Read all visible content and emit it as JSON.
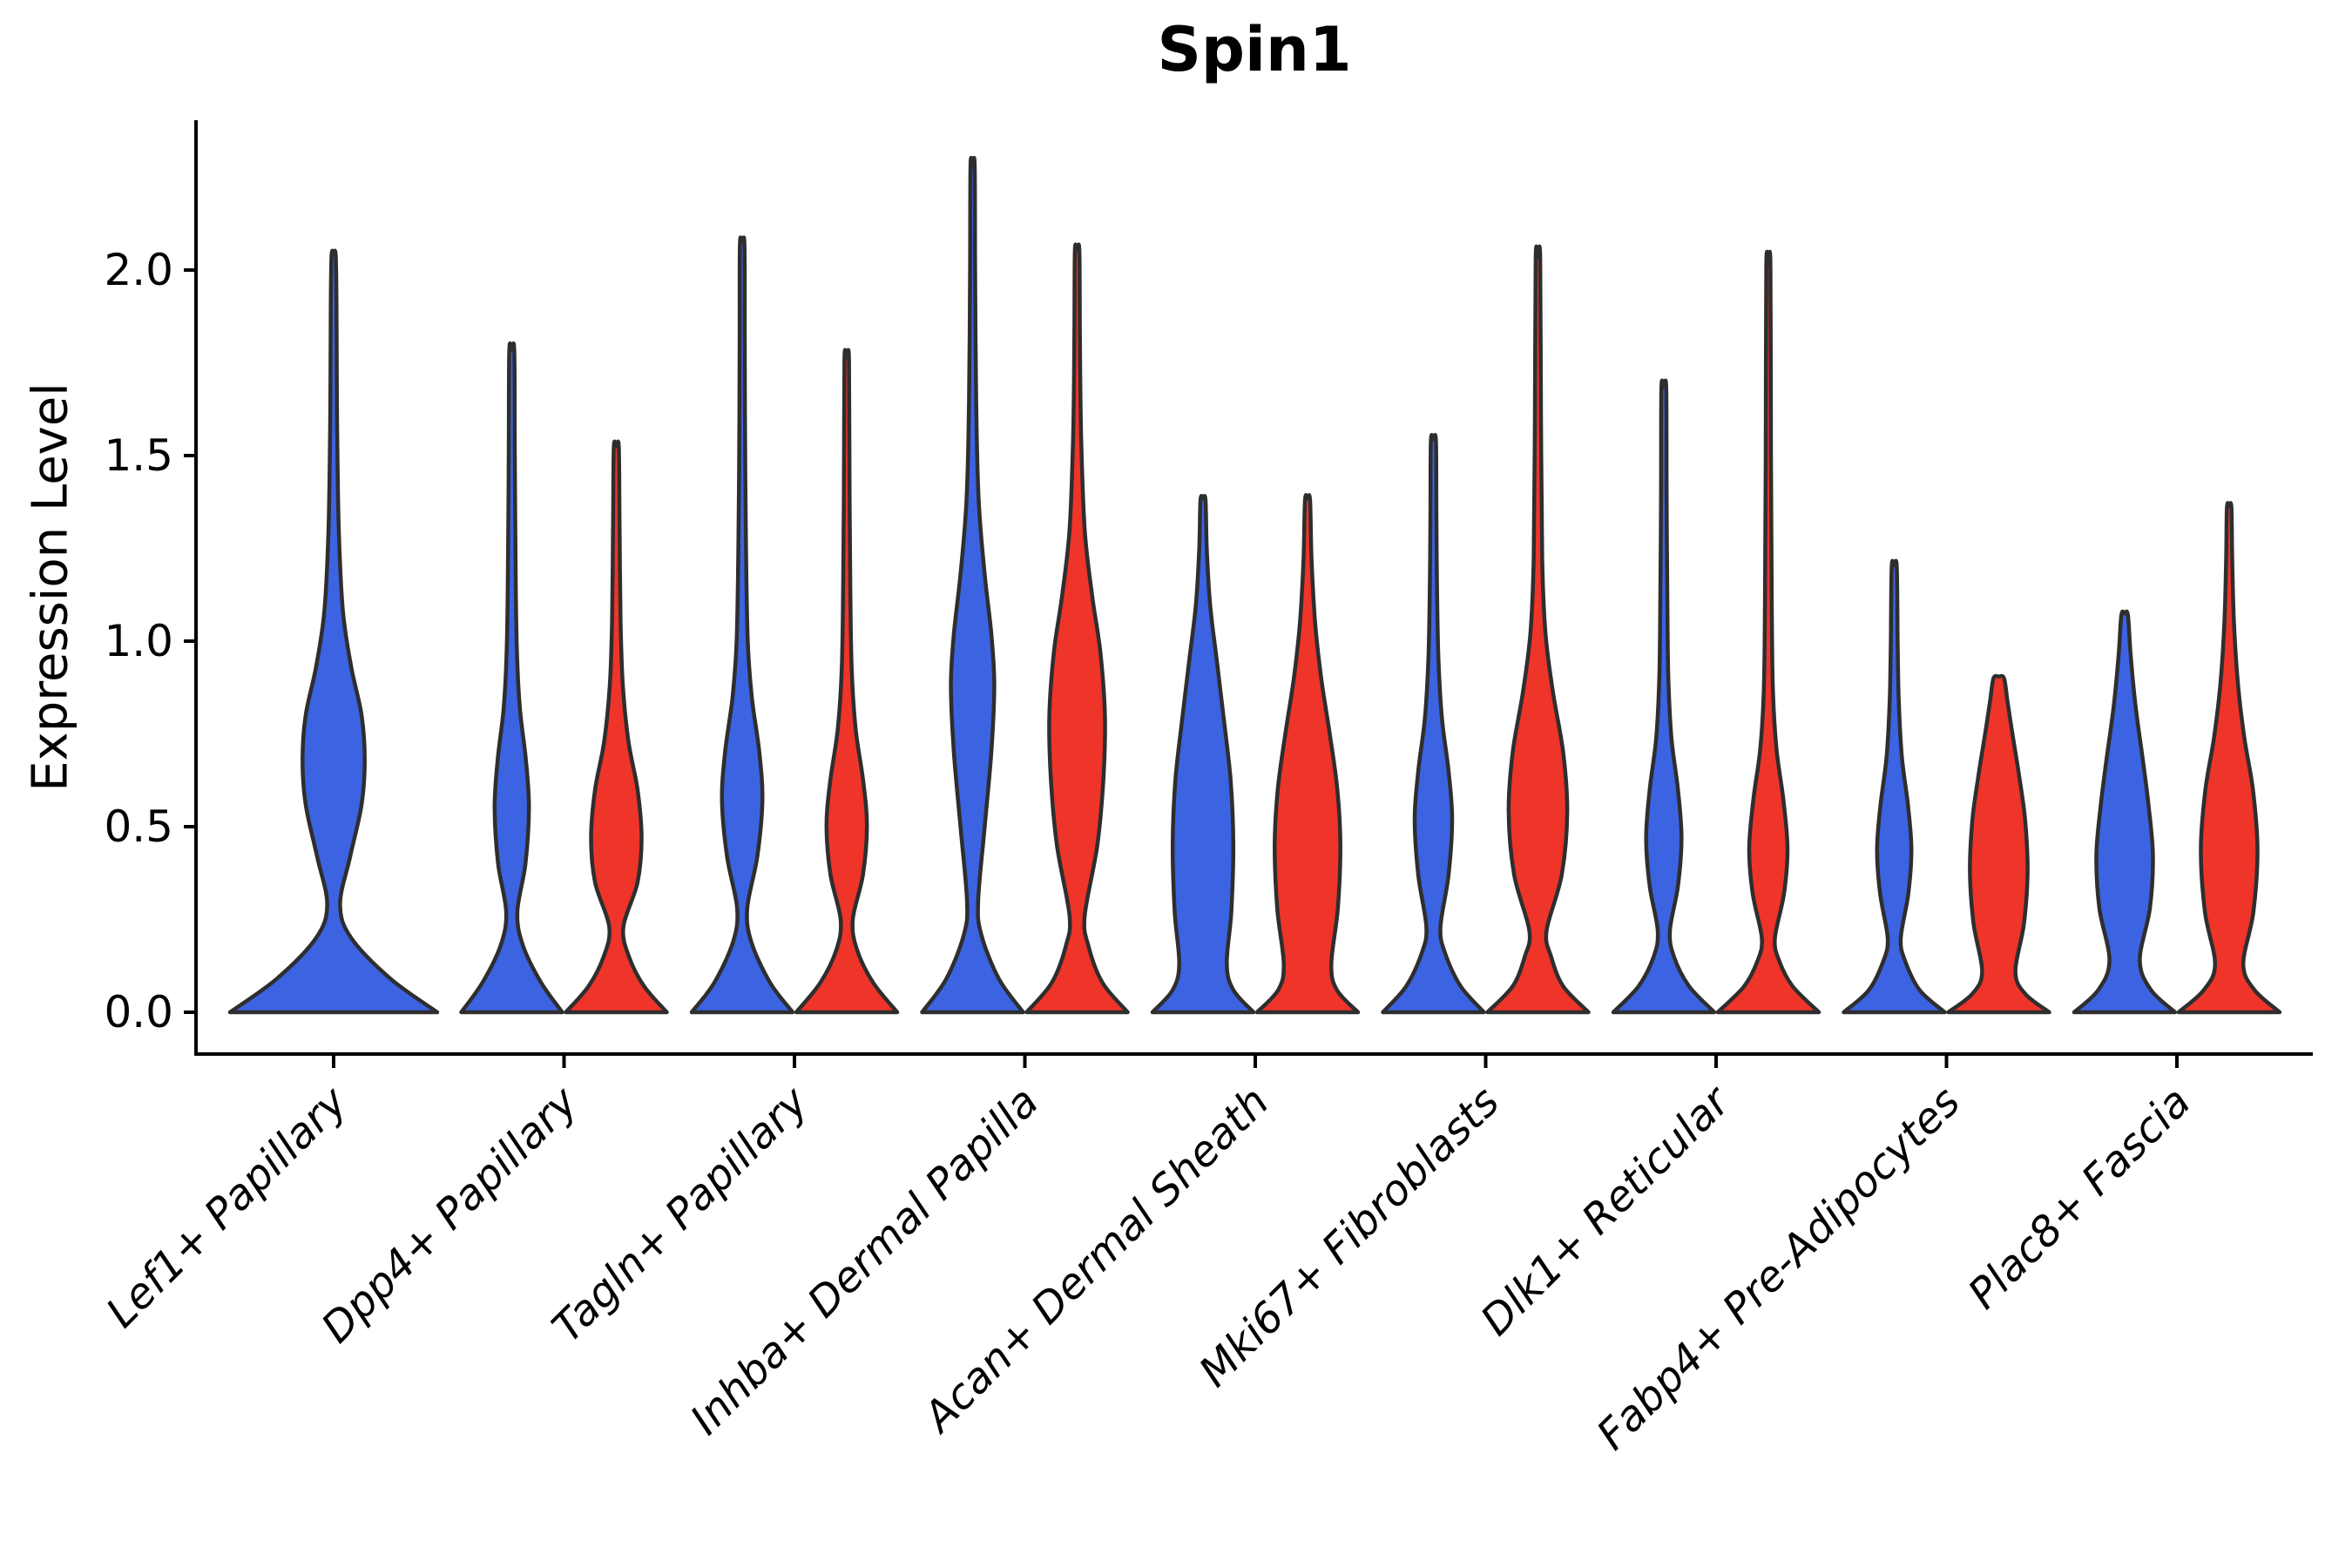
{
  "chart_data": {
    "type": "violin",
    "title": "Spin1",
    "ylabel": "Expression Level",
    "xlabel": "",
    "ylim": [
      -0.11,
      2.4
    ],
    "grid": false,
    "legend": "none",
    "yticks": [
      {
        "value": 0.0,
        "label": "0.0"
      },
      {
        "value": 0.5,
        "label": "0.5"
      },
      {
        "value": 1.0,
        "label": "1.0"
      },
      {
        "value": 1.5,
        "label": "1.5"
      },
      {
        "value": 2.0,
        "label": "2.0"
      }
    ],
    "categories": [
      "Lef1+ Papillary",
      "Dpp4+ Papillary",
      "Tagln+ Papillary",
      "Inhba+ Dermal Papilla",
      "Acan+ Dermal Sheath",
      "Mki67+ Fibroblasts",
      "Dlk1+ Reticular",
      "Fabp4+ Pre-Adipocytes",
      "Plac8+ Fascia"
    ],
    "groups": [
      {
        "id": "blue",
        "side": "left",
        "color": "#3C63E1"
      },
      {
        "id": "red",
        "side": "right",
        "color": "#EF342A"
      }
    ],
    "outline_color": "#2E2E2E",
    "violins": [
      {
        "category": "Lef1+ Papillary",
        "group": "blue",
        "layout": "single",
        "color": "#3C63E1",
        "max_expression": 2.04,
        "profile": [
          [
            0,
            1
          ],
          [
            0.09,
            0.55
          ],
          [
            0.2,
            0.17
          ],
          [
            0.29,
            0.062
          ],
          [
            0.42,
            0.16
          ],
          [
            0.56,
            0.27
          ],
          [
            0.68,
            0.3
          ],
          [
            0.8,
            0.27
          ],
          [
            0.93,
            0.17
          ],
          [
            1.08,
            0.09
          ],
          [
            1.3,
            0.05
          ],
          [
            1.6,
            0.033
          ],
          [
            1.9,
            0.028
          ],
          [
            2.04,
            0.02
          ]
        ]
      },
      {
        "category": "Dpp4+ Papillary",
        "group": "blue",
        "layout": "pair",
        "color": "#3C63E1",
        "max_expression": 1.78,
        "profile": [
          [
            0,
            1
          ],
          [
            0.08,
            0.58
          ],
          [
            0.18,
            0.22
          ],
          [
            0.27,
            0.11
          ],
          [
            0.4,
            0.27
          ],
          [
            0.55,
            0.34
          ],
          [
            0.68,
            0.28
          ],
          [
            0.82,
            0.16
          ],
          [
            0.98,
            0.1
          ],
          [
            1.2,
            0.075
          ],
          [
            1.5,
            0.06
          ],
          [
            1.78,
            0.05
          ]
        ]
      },
      {
        "category": "Dpp4+ Papillary",
        "group": "red",
        "layout": "pair",
        "color": "#EF342A",
        "max_expression": 1.52,
        "profile": [
          [
            0,
            1
          ],
          [
            0.07,
            0.55
          ],
          [
            0.15,
            0.25
          ],
          [
            0.23,
            0.14
          ],
          [
            0.35,
            0.42
          ],
          [
            0.47,
            0.5
          ],
          [
            0.6,
            0.42
          ],
          [
            0.73,
            0.24
          ],
          [
            0.88,
            0.13
          ],
          [
            1.05,
            0.085
          ],
          [
            1.3,
            0.065
          ],
          [
            1.52,
            0.05
          ]
        ]
      },
      {
        "category": "Tagln+ Papillary",
        "group": "blue",
        "layout": "pair",
        "color": "#3C63E1",
        "max_expression": 2.07,
        "profile": [
          [
            0,
            1
          ],
          [
            0.08,
            0.55
          ],
          [
            0.19,
            0.18
          ],
          [
            0.28,
            0.1
          ],
          [
            0.42,
            0.3
          ],
          [
            0.57,
            0.4
          ],
          [
            0.7,
            0.34
          ],
          [
            0.85,
            0.19
          ],
          [
            1.0,
            0.11
          ],
          [
            1.25,
            0.075
          ],
          [
            1.6,
            0.055
          ],
          [
            1.85,
            0.05
          ],
          [
            2.07,
            0.045
          ]
        ]
      },
      {
        "category": "Tagln+ Papillary",
        "group": "red",
        "layout": "pair",
        "color": "#EF342A",
        "max_expression": 1.76,
        "profile": [
          [
            0,
            1
          ],
          [
            0.08,
            0.52
          ],
          [
            0.17,
            0.2
          ],
          [
            0.25,
            0.12
          ],
          [
            0.37,
            0.32
          ],
          [
            0.5,
            0.4
          ],
          [
            0.62,
            0.33
          ],
          [
            0.76,
            0.18
          ],
          [
            0.92,
            0.1
          ],
          [
            1.15,
            0.07
          ],
          [
            1.45,
            0.055
          ],
          [
            1.76,
            0.045
          ]
        ]
      },
      {
        "category": "Inhba+ Dermal Papilla",
        "group": "blue",
        "layout": "pair",
        "color": "#3C63E1",
        "max_expression": 2.28,
        "profile": [
          [
            0,
            1
          ],
          [
            0.09,
            0.52
          ],
          [
            0.21,
            0.17
          ],
          [
            0.3,
            0.11
          ],
          [
            0.5,
            0.24
          ],
          [
            0.7,
            0.37
          ],
          [
            0.88,
            0.43
          ],
          [
            1.02,
            0.37
          ],
          [
            1.18,
            0.24
          ],
          [
            1.38,
            0.12
          ],
          [
            1.65,
            0.07
          ],
          [
            2.0,
            0.05
          ],
          [
            2.28,
            0.042
          ]
        ]
      },
      {
        "category": "Inhba+ Dermal Papilla",
        "group": "red",
        "layout": "pair",
        "color": "#EF342A",
        "max_expression": 2.05,
        "profile": [
          [
            0,
            1
          ],
          [
            0.08,
            0.5
          ],
          [
            0.18,
            0.22
          ],
          [
            0.26,
            0.15
          ],
          [
            0.45,
            0.4
          ],
          [
            0.63,
            0.52
          ],
          [
            0.8,
            0.55
          ],
          [
            0.97,
            0.46
          ],
          [
            1.12,
            0.3
          ],
          [
            1.3,
            0.15
          ],
          [
            1.55,
            0.08
          ],
          [
            1.82,
            0.055
          ],
          [
            2.05,
            0.045
          ]
        ]
      },
      {
        "category": "Acan+ Dermal Sheath",
        "group": "blue",
        "layout": "pair",
        "color": "#3C63E1",
        "max_expression": 1.38,
        "profile": [
          [
            0,
            1
          ],
          [
            0.06,
            0.6
          ],
          [
            0.13,
            0.47
          ],
          [
            0.27,
            0.56
          ],
          [
            0.45,
            0.6
          ],
          [
            0.62,
            0.55
          ],
          [
            0.78,
            0.42
          ],
          [
            0.95,
            0.27
          ],
          [
            1.1,
            0.14
          ],
          [
            1.25,
            0.075
          ],
          [
            1.38,
            0.05
          ]
        ]
      },
      {
        "category": "Acan+ Dermal Sheath",
        "group": "red",
        "layout": "pair",
        "color": "#EF342A",
        "max_expression": 1.38,
        "profile": [
          [
            0,
            1
          ],
          [
            0.06,
            0.58
          ],
          [
            0.13,
            0.47
          ],
          [
            0.28,
            0.6
          ],
          [
            0.45,
            0.65
          ],
          [
            0.6,
            0.59
          ],
          [
            0.75,
            0.44
          ],
          [
            0.9,
            0.27
          ],
          [
            1.05,
            0.15
          ],
          [
            1.22,
            0.08
          ],
          [
            1.38,
            0.05
          ]
        ]
      },
      {
        "category": "Mki67+ Fibroblasts",
        "group": "blue",
        "layout": "pair",
        "color": "#3C63E1",
        "max_expression": 1.54,
        "profile": [
          [
            0,
            1
          ],
          [
            0.07,
            0.54
          ],
          [
            0.16,
            0.23
          ],
          [
            0.23,
            0.14
          ],
          [
            0.37,
            0.3
          ],
          [
            0.52,
            0.37
          ],
          [
            0.65,
            0.3
          ],
          [
            0.79,
            0.17
          ],
          [
            0.95,
            0.1
          ],
          [
            1.15,
            0.07
          ],
          [
            1.35,
            0.058
          ],
          [
            1.54,
            0.05
          ]
        ]
      },
      {
        "category": "Mki67+ Fibroblasts",
        "group": "red",
        "layout": "pair",
        "color": "#EF342A",
        "max_expression": 2.03,
        "profile": [
          [
            0,
            1
          ],
          [
            0.07,
            0.5
          ],
          [
            0.15,
            0.26
          ],
          [
            0.22,
            0.17
          ],
          [
            0.37,
            0.47
          ],
          [
            0.54,
            0.58
          ],
          [
            0.7,
            0.5
          ],
          [
            0.86,
            0.3
          ],
          [
            1.02,
            0.15
          ],
          [
            1.22,
            0.085
          ],
          [
            1.6,
            0.06
          ],
          [
            2.03,
            0.045
          ]
        ]
      },
      {
        "category": "Dlk1+ Reticular",
        "group": "blue",
        "layout": "pair",
        "color": "#3C63E1",
        "max_expression": 1.68,
        "profile": [
          [
            0,
            1
          ],
          [
            0.07,
            0.5
          ],
          [
            0.15,
            0.2
          ],
          [
            0.22,
            0.12
          ],
          [
            0.34,
            0.28
          ],
          [
            0.47,
            0.35
          ],
          [
            0.6,
            0.28
          ],
          [
            0.74,
            0.15
          ],
          [
            0.9,
            0.09
          ],
          [
            1.1,
            0.07
          ],
          [
            1.4,
            0.055
          ],
          [
            1.68,
            0.048
          ]
        ]
      },
      {
        "category": "Dlk1+ Reticular",
        "group": "red",
        "layout": "pair",
        "color": "#EF342A",
        "max_expression": 2.01,
        "profile": [
          [
            0,
            1
          ],
          [
            0.07,
            0.48
          ],
          [
            0.14,
            0.21
          ],
          [
            0.2,
            0.13
          ],
          [
            0.32,
            0.31
          ],
          [
            0.44,
            0.38
          ],
          [
            0.57,
            0.3
          ],
          [
            0.71,
            0.16
          ],
          [
            0.87,
            0.09
          ],
          [
            1.1,
            0.068
          ],
          [
            1.5,
            0.052
          ],
          [
            2.01,
            0.042
          ]
        ]
      },
      {
        "category": "Fabp4+ Pre-Adipocytes",
        "group": "blue",
        "layout": "pair",
        "color": "#3C63E1",
        "max_expression": 1.2,
        "profile": [
          [
            0,
            1
          ],
          [
            0.06,
            0.5
          ],
          [
            0.14,
            0.21
          ],
          [
            0.2,
            0.13
          ],
          [
            0.32,
            0.28
          ],
          [
            0.44,
            0.34
          ],
          [
            0.56,
            0.27
          ],
          [
            0.69,
            0.15
          ],
          [
            0.84,
            0.09
          ],
          [
            1.0,
            0.068
          ],
          [
            1.2,
            0.05
          ]
        ]
      },
      {
        "category": "Fabp4+ Pre-Adipocytes",
        "group": "red",
        "layout": "pair",
        "color": "#EF342A",
        "max_expression": 0.9,
        "profile": [
          [
            0,
            1
          ],
          [
            0.05,
            0.52
          ],
          [
            0.11,
            0.33
          ],
          [
            0.24,
            0.5
          ],
          [
            0.38,
            0.57
          ],
          [
            0.52,
            0.52
          ],
          [
            0.64,
            0.4
          ],
          [
            0.75,
            0.27
          ],
          [
            0.84,
            0.17
          ],
          [
            0.9,
            0.105
          ]
        ]
      },
      {
        "category": "Plac8+ Fascia",
        "group": "blue",
        "layout": "pair",
        "color": "#3C63E1",
        "max_expression": 1.07,
        "profile": [
          [
            0,
            1
          ],
          [
            0.06,
            0.52
          ],
          [
            0.14,
            0.3
          ],
          [
            0.28,
            0.5
          ],
          [
            0.42,
            0.56
          ],
          [
            0.55,
            0.48
          ],
          [
            0.68,
            0.36
          ],
          [
            0.82,
            0.22
          ],
          [
            0.96,
            0.12
          ],
          [
            1.07,
            0.065
          ]
        ]
      },
      {
        "category": "Plac8+ Fascia",
        "group": "red",
        "layout": "pair",
        "color": "#EF342A",
        "max_expression": 1.36,
        "profile": [
          [
            0,
            1
          ],
          [
            0.06,
            0.5
          ],
          [
            0.13,
            0.28
          ],
          [
            0.27,
            0.48
          ],
          [
            0.44,
            0.56
          ],
          [
            0.6,
            0.47
          ],
          [
            0.74,
            0.3
          ],
          [
            0.89,
            0.17
          ],
          [
            1.05,
            0.095
          ],
          [
            1.22,
            0.06
          ],
          [
            1.36,
            0.045
          ]
        ]
      }
    ]
  }
}
